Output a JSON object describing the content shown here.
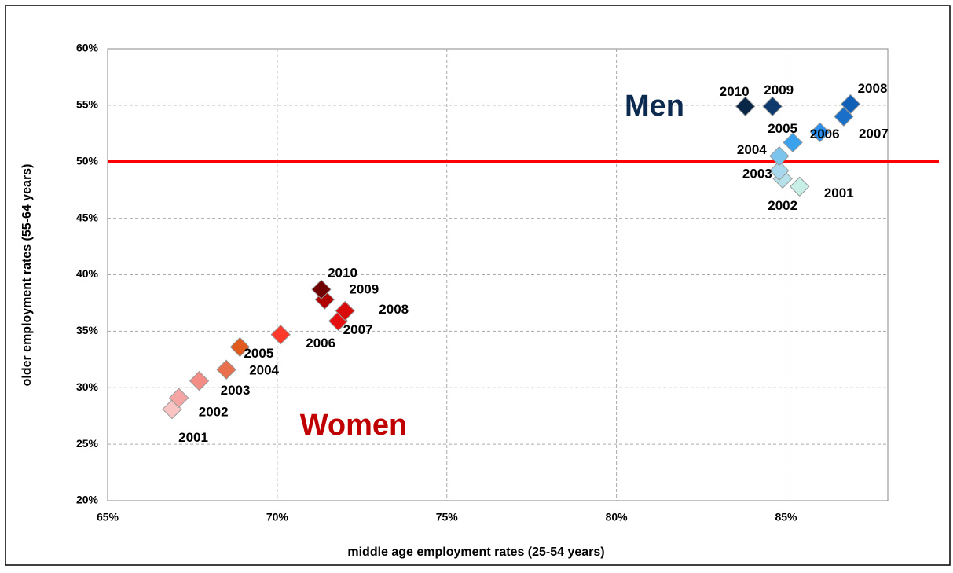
{
  "chart_data": {
    "type": "scatter",
    "xlabel": "middle age employment rates (25-54 years)",
    "ylabel": "older employment rates (55-64 years)",
    "xlim": [
      65,
      88
    ],
    "ylim": [
      20,
      60
    ],
    "xticks": [
      {
        "value": 65,
        "label": "65%"
      },
      {
        "value": 70,
        "label": "70%"
      },
      {
        "value": 75,
        "label": "75%"
      },
      {
        "value": 80,
        "label": "80%"
      },
      {
        "value": 85,
        "label": "85%"
      }
    ],
    "yticks": [
      {
        "value": 20,
        "label": "20%"
      },
      {
        "value": 25,
        "label": "25%"
      },
      {
        "value": 30,
        "label": "30%"
      },
      {
        "value": 35,
        "label": "35%"
      },
      {
        "value": 40,
        "label": "40%"
      },
      {
        "value": 45,
        "label": "45%"
      },
      {
        "value": 50,
        "label": "50%"
      },
      {
        "value": 55,
        "label": "55%"
      },
      {
        "value": 60,
        "label": "60%"
      }
    ],
    "grid": true,
    "reference_line": {
      "y": 50,
      "color": "#ff0000"
    },
    "series": [
      {
        "name": "Women",
        "color": "#c00000",
        "labels": [
          "2001",
          "2002",
          "2003",
          "2004",
          "2005",
          "2006",
          "2007",
          "2008",
          "2009",
          "2010"
        ],
        "colors": [
          "#f8c4c4",
          "#f6a5a5",
          "#f28c84",
          "#e8704f",
          "#e05a20",
          "#ff3a2a",
          "#e60f0f",
          "#d80a0a",
          "#b00000",
          "#700000"
        ],
        "x": [
          66.9,
          67.1,
          67.7,
          68.5,
          68.9,
          70.1,
          71.8,
          72.0,
          71.4,
          71.3
        ],
        "y": [
          28.1,
          29.1,
          30.6,
          31.6,
          33.6,
          34.7,
          35.9,
          36.8,
          37.8,
          38.7
        ]
      },
      {
        "name": "Men",
        "color": "#0c2a50",
        "labels": [
          "2001",
          "2002",
          "2003",
          "2004",
          "2005",
          "2006",
          "2007",
          "2008",
          "2009",
          "2010"
        ],
        "colors": [
          "#c8efe6",
          "#b6e0ea",
          "#a8d8ee",
          "#7cc4ec",
          "#3aa2ec",
          "#2a90ee",
          "#1a70c8",
          "#1060b8",
          "#0e3a6e",
          "#0a2646"
        ],
        "x": [
          85.4,
          84.9,
          84.8,
          84.8,
          85.2,
          86.0,
          86.7,
          86.9,
          84.6,
          83.8
        ],
        "y": [
          47.8,
          48.5,
          49.2,
          50.5,
          51.7,
          52.6,
          54.0,
          55.1,
          54.9,
          54.9
        ]
      }
    ]
  }
}
